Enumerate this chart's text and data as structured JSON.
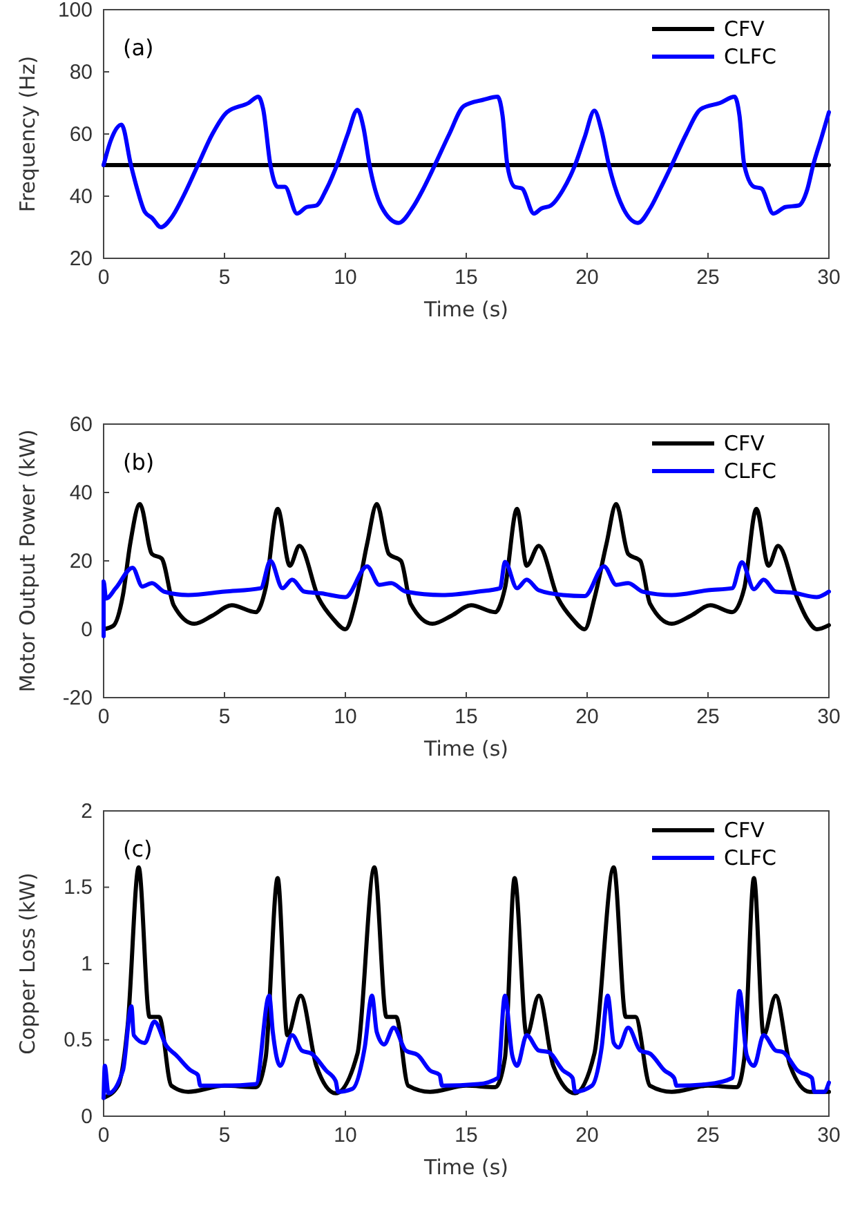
{
  "chart_data": [
    {
      "type": "line",
      "xlabel": "Time (s)",
      "ylabel": "Frequency (Hz)",
      "xlim": [
        0,
        30
      ],
      "ylim": [
        20,
        100
      ],
      "xticks": [
        0,
        5,
        10,
        15,
        20,
        25,
        30
      ],
      "yticks": [
        20,
        40,
        60,
        80,
        100
      ],
      "legend": "top right",
      "annotations": [
        "(a)"
      ],
      "series": [
        {
          "name": "CFV",
          "color": "#000000",
          "x": [
            0,
            30
          ],
          "values": [
            50,
            50
          ]
        },
        {
          "name": "CLFC",
          "color": "#0000ff",
          "x": [
            0,
            0.3,
            0.74,
            1.13,
            1.4,
            1.7,
            2.0,
            2.37,
            2.8,
            3.3,
            3.9,
            4.5,
            5.1,
            6.0,
            6.4,
            6.6,
            6.9,
            7.2,
            7.5,
            8.0,
            8.4,
            8.8,
            9.2,
            9.65,
            10.1,
            10.5,
            10.75,
            11.0,
            11.5,
            12.2,
            12.8,
            13.2,
            13.7,
            14.3,
            14.9,
            15.7,
            16.3,
            16.5,
            16.7,
            17.0,
            17.3,
            17.8,
            18.1,
            18.5,
            19.0,
            19.5,
            19.9,
            20.3,
            20.6,
            20.9,
            21.5,
            22.1,
            22.6,
            23.0,
            23.5,
            24.1,
            24.7,
            25.5,
            26.1,
            26.3,
            26.5,
            26.9,
            27.2,
            27.7,
            28.2,
            28.75,
            29.1,
            29.35,
            29.7,
            30
          ],
          "values": [
            50,
            58,
            63,
            50,
            42,
            35,
            33,
            30,
            33,
            40,
            50,
            60,
            67,
            70,
            72,
            68,
            50,
            43,
            43,
            34.4,
            36.5,
            37,
            42,
            50,
            60,
            67.8,
            62,
            50,
            36.5,
            31.4,
            36.5,
            42,
            50,
            60,
            69,
            71,
            72,
            66,
            50,
            43,
            42.5,
            34.4,
            36,
            37,
            42,
            50,
            59,
            67.5,
            61,
            50,
            36,
            31.4,
            36,
            42,
            50,
            60,
            68,
            70,
            72,
            66,
            50,
            43,
            42.5,
            34.4,
            36.5,
            37,
            42,
            50,
            59,
            67
          ]
        }
      ]
    },
    {
      "type": "line",
      "xlabel": "Time (s)",
      "ylabel": "Motor Output Power (kW)",
      "xlim": [
        0,
        30
      ],
      "ylim": [
        -20,
        60
      ],
      "xticks": [
        0,
        5,
        10,
        15,
        20,
        25,
        30
      ],
      "yticks": [
        -20,
        0,
        20,
        40,
        60
      ],
      "legend": "top right",
      "annotations": [
        "(b)"
      ],
      "series": [
        {
          "name": "CFV",
          "color": "#000000",
          "x": [
            0,
            0.4,
            0.8,
            1.1,
            1.5,
            2.0,
            2.4,
            2.9,
            3.75,
            4.5,
            5.3,
            6.3,
            6.7,
            7.2,
            7.7,
            8.1,
            8.9,
            9.5,
            10.0,
            10.45,
            10.9,
            11.3,
            11.8,
            12.3,
            12.7,
            13.6,
            14.4,
            15.2,
            16.2,
            16.6,
            17.1,
            17.5,
            18.0,
            18.8,
            19.4,
            19.9,
            20.3,
            20.8,
            21.2,
            21.7,
            22.2,
            22.6,
            23.5,
            24.3,
            25.1,
            26.0,
            26.5,
            27.0,
            27.5,
            27.9,
            28.7,
            29.1,
            29.5,
            30
          ],
          "values": [
            0,
            1,
            10,
            25,
            36.6,
            22,
            20.7,
            7,
            1.6,
            4,
            7,
            5,
            12,
            35.2,
            18.6,
            24.4,
            9,
            3,
            0,
            9,
            25,
            36.6,
            22,
            20,
            7.5,
            1.6,
            4,
            7,
            5,
            12,
            35.2,
            18.6,
            24.4,
            9,
            3,
            0,
            9,
            25,
            36.6,
            22,
            20,
            7.5,
            1.6,
            4,
            7,
            5,
            12,
            35.2,
            18.6,
            24.4,
            9,
            3,
            0,
            1.2
          ]
        },
        {
          "name": "CLFC",
          "color": "#0000ff",
          "x": [
            0,
            0,
            0.1,
            0.5,
            1.2,
            1.6,
            2.0,
            2.5,
            3.5,
            5.0,
            6.5,
            6.9,
            7.4,
            7.8,
            8.3,
            9.0,
            10.0,
            10.9,
            11.4,
            11.9,
            12.5,
            14.0,
            15.5,
            16.4,
            16.6,
            17.1,
            17.5,
            18.0,
            19.0,
            19.9,
            20.7,
            21.2,
            21.7,
            22.3,
            23.5,
            25.0,
            26.0,
            26.4,
            26.9,
            27.3,
            27.8,
            28.5,
            29.5,
            30
          ],
          "values": [
            -2,
            14,
            9,
            12,
            18,
            12.5,
            13.5,
            11,
            10,
            11,
            12,
            20,
            12,
            14.5,
            11,
            10.5,
            9.4,
            18.4,
            13,
            13.5,
            11,
            10,
            11,
            12,
            19.7,
            12,
            14.5,
            11.4,
            10,
            9.7,
            18.4,
            13,
            13.5,
            11,
            10,
            11.4,
            12,
            19.6,
            11.7,
            14.5,
            11,
            10.7,
            9.4,
            11
          ]
        }
      ]
    },
    {
      "type": "line",
      "xlabel": "Time (s)",
      "ylabel": "Copper Loss (kW)",
      "xlim": [
        0,
        30
      ],
      "ylim": [
        0,
        2
      ],
      "xticks": [
        0,
        5,
        10,
        15,
        20,
        25,
        30
      ],
      "yticks": [
        0,
        0.5,
        1,
        1.5,
        2
      ],
      "legend": "top right",
      "annotations": [
        "(c)"
      ],
      "series": [
        {
          "name": "CFV",
          "color": "#000000",
          "x": [
            0,
            0.6,
            1.0,
            1.45,
            1.9,
            2.3,
            2.8,
            3.5,
            5.0,
            6.3,
            6.7,
            7.2,
            7.6,
            8.15,
            8.8,
            9.6,
            10.5,
            11.2,
            11.7,
            12.1,
            12.6,
            13.5,
            15.0,
            16.2,
            16.6,
            17.0,
            17.5,
            18.0,
            18.6,
            19.5,
            20.3,
            21.1,
            21.6,
            22.0,
            22.6,
            23.5,
            25.0,
            26.2,
            26.5,
            26.9,
            27.3,
            27.8,
            28.4,
            29.2,
            30
          ],
          "values": [
            0.12,
            0.2,
            0.6,
            1.63,
            0.65,
            0.65,
            0.2,
            0.16,
            0.2,
            0.19,
            0.38,
            1.56,
            0.53,
            0.79,
            0.33,
            0.15,
            0.41,
            1.63,
            0.65,
            0.65,
            0.2,
            0.16,
            0.2,
            0.19,
            0.38,
            1.56,
            0.53,
            0.79,
            0.33,
            0.15,
            0.41,
            1.63,
            0.65,
            0.65,
            0.2,
            0.16,
            0.2,
            0.19,
            0.38,
            1.56,
            0.53,
            0.79,
            0.33,
            0.16,
            0.16
          ]
        },
        {
          "name": "CLFC",
          "color": "#0000ff",
          "x": [
            0,
            0.05,
            0.2,
            0.8,
            1.15,
            1.25,
            1.7,
            2.1,
            2.6,
            3.0,
            3.6,
            3.9,
            4.0,
            5.0,
            6.3,
            6.85,
            7.0,
            7.3,
            7.8,
            8.2,
            8.6,
            9.2,
            9.6,
            9.7,
            10.3,
            10.8,
            11.1,
            11.3,
            11.6,
            12.0,
            12.5,
            13.0,
            13.5,
            13.9,
            14.0,
            15.5,
            16.3,
            16.6,
            16.9,
            17.1,
            17.5,
            18.0,
            18.4,
            19.0,
            19.4,
            19.5,
            20.2,
            20.6,
            20.85,
            21.1,
            21.3,
            21.7,
            22.2,
            22.6,
            23.2,
            23.6,
            23.7,
            25.0,
            26.0,
            26.3,
            26.6,
            26.9,
            27.3,
            27.8,
            28.1,
            28.7,
            29.3,
            29.4,
            29.8,
            30
          ],
          "values": [
            0.12,
            0.33,
            0.15,
            0.3,
            0.72,
            0.53,
            0.48,
            0.62,
            0.46,
            0.4,
            0.3,
            0.27,
            0.2,
            0.2,
            0.21,
            0.79,
            0.55,
            0.33,
            0.53,
            0.43,
            0.41,
            0.3,
            0.23,
            0.16,
            0.18,
            0.45,
            0.79,
            0.55,
            0.47,
            0.58,
            0.43,
            0.4,
            0.3,
            0.27,
            0.2,
            0.21,
            0.25,
            0.79,
            0.4,
            0.33,
            0.53,
            0.43,
            0.42,
            0.3,
            0.25,
            0.16,
            0.2,
            0.45,
            0.79,
            0.48,
            0.45,
            0.58,
            0.43,
            0.41,
            0.3,
            0.25,
            0.2,
            0.21,
            0.25,
            0.82,
            0.4,
            0.33,
            0.53,
            0.43,
            0.42,
            0.3,
            0.25,
            0.16,
            0.16,
            0.22
          ]
        }
      ]
    }
  ]
}
